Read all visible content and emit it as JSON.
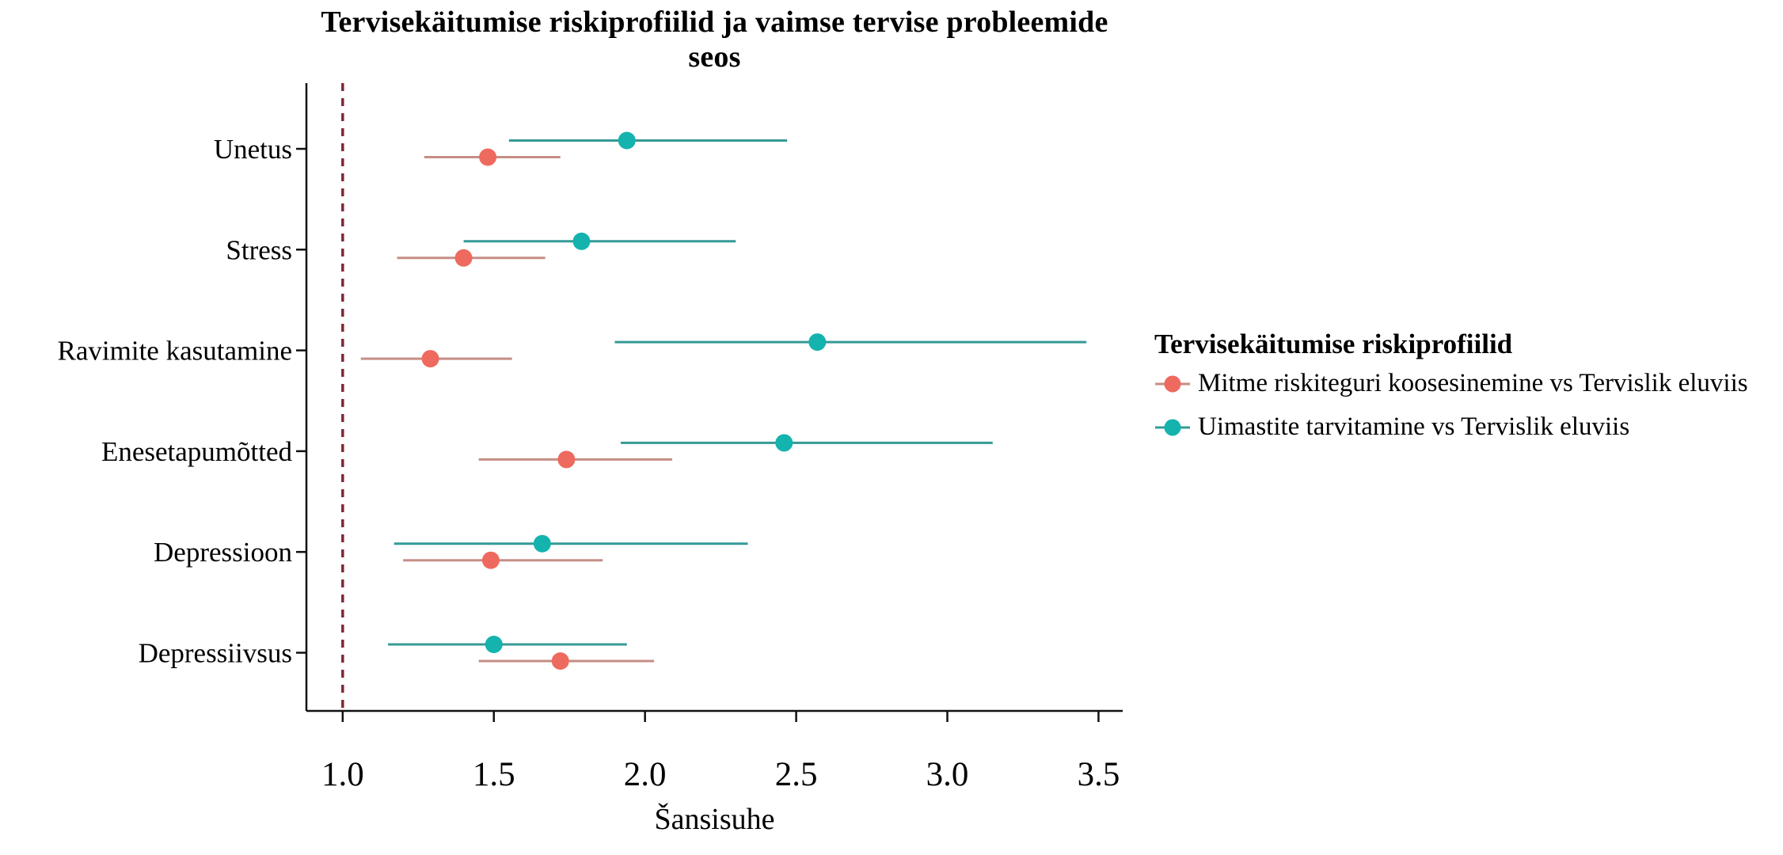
{
  "title": "Tervisekäitumise riskiprofiilid ja vaimse tervise probleemide seos",
  "chart_data": {
    "type": "scatter",
    "subtype": "forest-plot-pointrange",
    "orientation": "horizontal",
    "xlabel": "Šansisuhe",
    "x_domain": [
      0.88,
      3.58
    ],
    "x_ticks": [
      1.0,
      1.5,
      2.0,
      2.5,
      3.0,
      3.5
    ],
    "grid": "off",
    "reference_line": {
      "x": 1.0,
      "style": "dashed",
      "color": "#7f2835"
    },
    "axis_color": "#111111",
    "text_color": "#000000",
    "categories": [
      "Unetus",
      "Stress",
      "Ravimite kasutamine",
      "Enesetapumõtted",
      "Depressioon",
      "Depressiivsus"
    ],
    "legend": {
      "title": "Tervisekäitumise riskiprofiilid",
      "position": "right"
    },
    "series": [
      {
        "name": "Mitme riskiteguri koosesinemine vs Tervislik eluviis",
        "point_color": "#ee6a5e",
        "line_color": "#c58e85",
        "values": [
          {
            "category": "Unetus",
            "or": 1.48,
            "ci_low": 1.27,
            "ci_high": 1.72
          },
          {
            "category": "Stress",
            "or": 1.4,
            "ci_low": 1.18,
            "ci_high": 1.67
          },
          {
            "category": "Ravimite kasutamine",
            "or": 1.29,
            "ci_low": 1.06,
            "ci_high": 1.56
          },
          {
            "category": "Enesetapumõtted",
            "or": 1.74,
            "ci_low": 1.45,
            "ci_high": 2.09
          },
          {
            "category": "Depressioon",
            "or": 1.49,
            "ci_low": 1.2,
            "ci_high": 1.86
          },
          {
            "category": "Depressiivsus",
            "or": 1.72,
            "ci_low": 1.45,
            "ci_high": 2.03
          }
        ]
      },
      {
        "name": "Uimastite tarvitamine vs Tervislik eluviis",
        "point_color": "#14b3ae",
        "line_color": "#359a96",
        "values": [
          {
            "category": "Unetus",
            "or": 1.94,
            "ci_low": 1.55,
            "ci_high": 2.47
          },
          {
            "category": "Stress",
            "or": 1.79,
            "ci_low": 1.4,
            "ci_high": 2.3
          },
          {
            "category": "Ravimite kasutamine",
            "or": 2.57,
            "ci_low": 1.9,
            "ci_high": 3.46
          },
          {
            "category": "Enesetapumõtted",
            "or": 2.46,
            "ci_low": 1.92,
            "ci_high": 3.15
          },
          {
            "category": "Depressioon",
            "or": 1.66,
            "ci_low": 1.17,
            "ci_high": 2.34
          },
          {
            "category": "Depressiivsus",
            "or": 1.5,
            "ci_low": 1.15,
            "ci_high": 1.94
          }
        ]
      }
    ]
  }
}
